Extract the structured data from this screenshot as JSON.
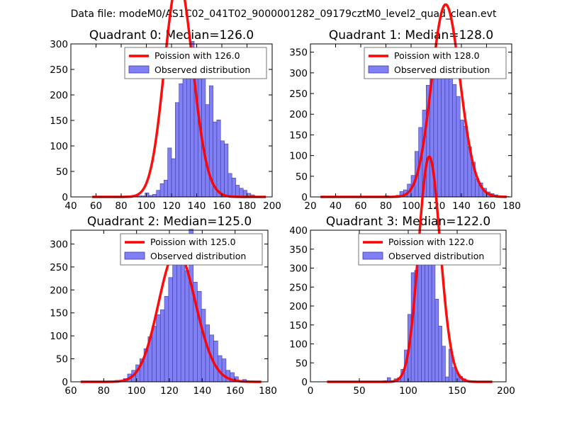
{
  "figure": {
    "suptitle": "Data file: modeM0/AS1C02_041T02_9000001282_09179cztM0_level2_quad_clean.evt"
  },
  "colors": {
    "bar_fill": "#8080f4",
    "bar_edge": "#3a3aa8",
    "line": "#ff0000",
    "axis": "#000000",
    "legend_edge": "#555555"
  },
  "chart_data": [
    {
      "type": "bar",
      "title": "Quadrant 0: Median=126.0",
      "xlim": [
        40,
        200
      ],
      "ylim": [
        0,
        300
      ],
      "xticks": [
        "40",
        "60",
        "80",
        "100",
        "120",
        "140",
        "160",
        "180",
        "200"
      ],
      "yticks": [
        "0",
        "50",
        "100",
        "150",
        "200",
        "250",
        "300"
      ],
      "legend": {
        "location": "upper right",
        "line_label": "Poission with 126.0",
        "bar_label": "Observed distribution"
      },
      "bins": {
        "start": 90,
        "width": 3
      },
      "values": [
        1,
        2,
        2,
        8,
        3,
        5,
        13,
        26,
        33,
        96,
        75,
        185,
        222,
        252,
        274,
        305,
        242,
        271,
        260,
        181,
        218,
        147,
        151,
        110,
        104,
        46,
        37,
        23,
        17,
        13,
        7,
        4,
        1
      ],
      "model": {
        "mean": 126.0,
        "total": 4000,
        "bin_width": 3,
        "x_range": [
          57,
          195
        ]
      }
    },
    {
      "type": "bar",
      "title": "Quadrant 1: Median=128.0",
      "xlim": [
        20,
        180
      ],
      "ylim": [
        0,
        370
      ],
      "xticks": [
        "20",
        "40",
        "60",
        "80",
        "100",
        "120",
        "140",
        "160",
        "180"
      ],
      "yticks": [
        "0",
        "50",
        "100",
        "150",
        "200",
        "250",
        "300",
        "350"
      ],
      "legend": {
        "location": "upper right",
        "line_label": "Poission with 128.0",
        "bar_label": "Observed distribution"
      },
      "bins": {
        "start": 76,
        "width": 3
      },
      "values": [
        1,
        3,
        1,
        1,
        4,
        13,
        17,
        31,
        52,
        110,
        168,
        210,
        270,
        300,
        333,
        343,
        355,
        315,
        288,
        272,
        243,
        186,
        171,
        121,
        84,
        44,
        34,
        21,
        12,
        8,
        5,
        2,
        1,
        1
      ],
      "model": {
        "mean": 128.0,
        "total": 4400,
        "bin_width": 3,
        "x_range": [
          28,
          176
        ]
      }
    },
    {
      "type": "bar",
      "title": "Quadrant 2: Median=125.0",
      "xlim": [
        60,
        180
      ],
      "ylim": [
        0,
        330
      ],
      "xticks": [
        "60",
        "80",
        "100",
        "120",
        "140",
        "160",
        "180"
      ],
      "yticks": [
        "0",
        "50",
        "100",
        "150",
        "200",
        "250",
        "300"
      ],
      "legend": {
        "location": "upper right",
        "line_label": "Poission with 125.0",
        "bar_label": "Observed distribution"
      },
      "bins": {
        "start": 87,
        "width": 2.5
      },
      "values": [
        3,
        1,
        7,
        17,
        25,
        37,
        50,
        72,
        98,
        121,
        146,
        157,
        186,
        227,
        283,
        296,
        259,
        242,
        332,
        217,
        197,
        158,
        124,
        102,
        89,
        57,
        50,
        25,
        20,
        11,
        3,
        5
      ],
      "model": {
        "mean": 125.0,
        "total": 3200,
        "bin_width": 2.5,
        "x_range": [
          66,
          176
        ]
      }
    },
    {
      "type": "bar",
      "title": "Quadrant 3: Median=122.0",
      "xlim": [
        0,
        200
      ],
      "ylim": [
        0,
        400
      ],
      "xticks": [
        "0",
        "50",
        "100",
        "150",
        "200"
      ],
      "yticks": [
        "0",
        "50",
        "100",
        "150",
        "200",
        "250",
        "300",
        "350",
        "400"
      ],
      "legend": {
        "location": "upper right",
        "line_label": "Poission with 122.0",
        "bar_label": "Observed distribution"
      },
      "bins": {
        "start": 75,
        "width": 3.5
      },
      "values": [
        3,
        11,
        2,
        8,
        11,
        33,
        84,
        178,
        288,
        294,
        327,
        376,
        353,
        327,
        314,
        218,
        147,
        94,
        13,
        86,
        38,
        23,
        14,
        8
      ],
      "model": {
        "mean": 122.0,
        "total": 4700,
        "bin_width": 3.5,
        "x_range": [
          17,
          186
        ]
      }
    }
  ]
}
